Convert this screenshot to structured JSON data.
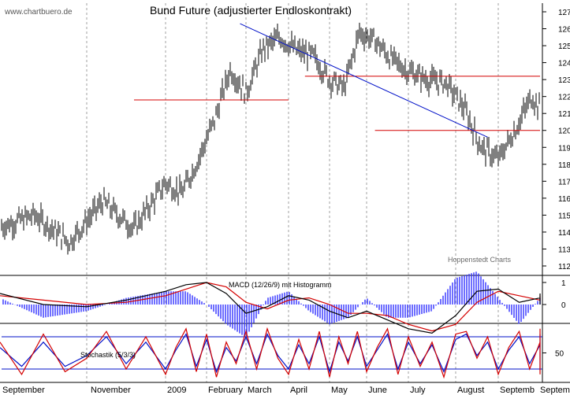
{
  "watermark": "www.chartbuero.de",
  "credit": "Hoppenstedt Charts",
  "colors": {
    "price": "#000000",
    "support_resistance": "#d40000",
    "trendline": "#0010c8",
    "macd_line": "#000000",
    "signal_line": "#d40000",
    "histogram": "#3030ff",
    "stoch_k": "#d40000",
    "stoch_d": "#0010c8",
    "grid": "#a0a0a0"
  },
  "months": [
    "September",
    "November",
    "2009",
    "February",
    "March",
    "April",
    "May",
    "June",
    "July",
    "August",
    "Septemb",
    "September"
  ],
  "chart_data": [
    {
      "type": "line",
      "title": "Bund Future (adjustierter Endloskontrakt)",
      "y_axis": "right",
      "ylim": [
        112,
        127
      ],
      "yticks": [
        112,
        113,
        114,
        115,
        116,
        117,
        118,
        119,
        120,
        121,
        122,
        123,
        124,
        125,
        126,
        127
      ],
      "grid": "vertical dotted, monthly",
      "x_months": [
        "September",
        "November",
        "2009",
        "February",
        "March",
        "April",
        "May",
        "June",
        "July",
        "August",
        "Septemb"
      ],
      "x": [
        0,
        0.4,
        0.8,
        1.2,
        1.6,
        2.0,
        2.4,
        2.8,
        3.2,
        3.6,
        4.0,
        4.4,
        4.8,
        5.2,
        5.6,
        6.0,
        6.4,
        6.8,
        7.2,
        7.6,
        8.0,
        8.4,
        8.8,
        9.2,
        9.6,
        10.0,
        10.4,
        10.8,
        11.2,
        11.6,
        12.0,
        12.4,
        12.6
      ],
      "series": [
        {
          "values": [
            114.3,
            115.0,
            113.4,
            115.8,
            114.2,
            116.9,
            116.3,
            118.3,
            120.6,
            123.6,
            122.2,
            124.8,
            125.5,
            124.7,
            124.4,
            123.0,
            122.5,
            125.8,
            125.3,
            124.2,
            123.5,
            123.0,
            122.8,
            121.3,
            119.0,
            118.3,
            120.0,
            122.0,
            121.3,
            122.1,
            122.9,
            122.8,
            121.3
          ]
        }
      ],
      "lines": [
        {
          "kind": "horizontal",
          "name": "support",
          "y": 121.8,
          "from_month": 1.6,
          "to_month": 5.0
        },
        {
          "kind": "horizontal",
          "name": "resistance",
          "y": 123.2,
          "from_month": 5.4,
          "to_month": 12.9
        },
        {
          "kind": "horizontal",
          "name": "support",
          "y": 120.0,
          "from_month": 7.2,
          "to_month": 12.9
        },
        {
          "kind": "trend",
          "name": "downtrend",
          "x1": 3.85,
          "y1": 126.3,
          "x2": 9.75,
          "y2": 119.6
        }
      ]
    },
    {
      "type": "line",
      "title": "MACD (12/26/9) mit Histogramm",
      "y_axis": "right",
      "yticks": [
        1,
        0
      ],
      "ylim": [
        -2,
        2
      ],
      "x": [
        0,
        0.5,
        1.0,
        1.5,
        2.0,
        2.5,
        3.0,
        3.5,
        4.0,
        4.5,
        5.0,
        5.5,
        6.0,
        6.5,
        7.0,
        7.5,
        8.0,
        8.5,
        9.0,
        9.5,
        10.0,
        10.5,
        11.0,
        11.5,
        12.0,
        12.4,
        12.6
      ],
      "series": [
        {
          "name": "MACD",
          "values": [
            0.5,
            0.0,
            -0.1,
            0.2,
            0.6,
            0.9,
            1.0,
            0.5,
            -0.4,
            -0.1,
            0.4,
            0.2,
            -0.3,
            -0.6,
            -0.3,
            -0.7,
            -1.1,
            -1.3,
            -0.5,
            0.6,
            0.7,
            0.1,
            0.3,
            0.1,
            0.5,
            0.4,
            0.0
          ]
        },
        {
          "name": "Signal",
          "values": [
            0.4,
            0.2,
            0.0,
            0.1,
            0.4,
            0.7,
            1.0,
            0.8,
            0.1,
            -0.2,
            0.2,
            0.3,
            0.0,
            -0.4,
            -0.4,
            -0.5,
            -0.9,
            -1.2,
            -0.9,
            0.1,
            0.6,
            0.4,
            0.2,
            0.2,
            0.3,
            0.4,
            0.2
          ]
        }
      ]
    },
    {
      "type": "line",
      "title": "Stochastik (5/3/3)",
      "y_axis": "right",
      "yticks": [
        50
      ],
      "ylim": [
        0,
        100
      ],
      "x": [
        0,
        0.25,
        0.5,
        0.75,
        1.0,
        1.25,
        1.5,
        1.75,
        2.0,
        2.25,
        2.5,
        2.75,
        3.0,
        3.25,
        3.5,
        3.75,
        4.0,
        4.25,
        4.5,
        4.75,
        5.0,
        5.25,
        5.5,
        5.75,
        6.0,
        6.25,
        6.5,
        6.75,
        7.0,
        7.25,
        7.5,
        7.75,
        8.0,
        8.25,
        8.5,
        8.75,
        9.0,
        9.25,
        9.5,
        9.75,
        10.0,
        10.25,
        10.5,
        10.75,
        11.0,
        11.25,
        11.5,
        11.75,
        12.0,
        12.25,
        12.5,
        12.6
      ],
      "series": [
        {
          "name": "%K",
          "values": [
            70,
            10,
            85,
            15,
            40,
            90,
            20,
            80,
            10,
            60,
            95,
            15,
            85,
            5,
            70,
            30,
            90,
            20,
            95,
            40,
            10,
            75,
            20,
            90,
            5,
            80,
            30,
            90,
            15,
            60,
            95,
            10,
            80,
            25,
            70,
            5,
            85,
            90,
            40,
            80,
            10,
            60,
            90,
            20,
            70,
            10,
            95,
            30,
            90,
            85,
            10,
            15
          ]
        },
        {
          "name": "%D",
          "values": [
            60,
            25,
            70,
            25,
            45,
            80,
            30,
            70,
            20,
            55,
            85,
            25,
            75,
            15,
            60,
            35,
            80,
            30,
            85,
            45,
            20,
            65,
            30,
            80,
            15,
            70,
            35,
            80,
            25,
            55,
            85,
            20,
            70,
            30,
            65,
            15,
            75,
            85,
            45,
            70,
            20,
            55,
            80,
            30,
            65,
            20,
            85,
            35,
            80,
            85,
            20,
            18
          ]
        }
      ],
      "lines": [
        {
          "kind": "horizontal",
          "name": "upper",
          "y": 80
        },
        {
          "kind": "horizontal",
          "name": "lower",
          "y": 20
        }
      ]
    }
  ]
}
